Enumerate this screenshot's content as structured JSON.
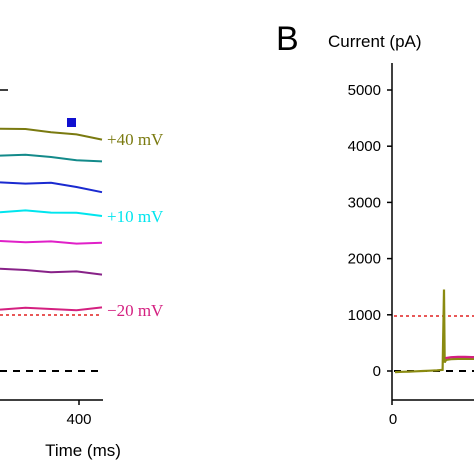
{
  "panel_b_label": "B",
  "chart_data": [
    {
      "type": "line",
      "panel": "A (cropped)",
      "xlabel": "Time (ms)",
      "x_ticks": [
        400
      ],
      "x_visible_range": [
        310,
        430
      ],
      "traces_note": "",
      "series": [
        {
          "name": "+40 mV",
          "color": "#7a7a10",
          "x": [
            310,
            340,
            370,
            400,
            430
          ],
          "y": [
            130,
            129,
            131,
            135,
            139
          ]
        },
        {
          "name": "",
          "color": "#138a8a",
          "x": [
            310,
            340,
            370,
            400,
            430
          ],
          "y": [
            155,
            156,
            157,
            159,
            162
          ]
        },
        {
          "name": "",
          "color": "#1a2ad0",
          "x": [
            310,
            340,
            370,
            400,
            430
          ],
          "y": [
            183,
            183,
            184,
            187,
            191
          ]
        },
        {
          "name": "+10 mV",
          "color": "#00e5ee",
          "x": [
            310,
            340,
            370,
            400,
            430
          ],
          "y": [
            211,
            211,
            212,
            214,
            216
          ]
        },
        {
          "name": "",
          "color": "#e020c8",
          "x": [
            310,
            340,
            370,
            400,
            430
          ],
          "y": [
            241,
            241,
            242,
            243,
            244
          ]
        },
        {
          "name": "",
          "color": "#882288",
          "x": [
            310,
            340,
            370,
            400,
            430
          ],
          "y": [
            270,
            270,
            271,
            272,
            274
          ]
        },
        {
          "name": "-20 mV",
          "color": "#d42080",
          "x": [
            310,
            340,
            370,
            400,
            430
          ],
          "y": [
            309,
            309,
            309,
            309,
            308
          ]
        }
      ],
      "reference_lines": [
        {
          "style": "dashed",
          "color": "#e02020"
        },
        {
          "style": "dashed",
          "color": "#000000"
        }
      ],
      "marker": {
        "shape": "square",
        "color": "#1010d0"
      },
      "trace_labels": [
        "+40 mV",
        "+10 mV",
        "−20 mV"
      ]
    },
    {
      "type": "line",
      "panel": "B",
      "ylabel": "Current (pA)",
      "y_ticks": [
        0,
        1000,
        2000,
        3000,
        4000,
        5000
      ],
      "ylim": [
        -300,
        5500
      ],
      "x_ticks": [
        0
      ],
      "series": [
        {
          "name": "",
          "color": "#8a8a10",
          "x": [
            0,
            5,
            10,
            15,
            20,
            25,
            30,
            34,
            35,
            35.5,
            36,
            37,
            40,
            45,
            50,
            55,
            60
          ],
          "y": [
            -20,
            -15,
            -10,
            -5,
            0,
            5,
            10,
            20,
            1450,
            150,
            180,
            200,
            210,
            215,
            215,
            215,
            215
          ]
        },
        {
          "name": "",
          "color": "#d42080",
          "x": [
            36,
            40,
            45,
            50,
            55,
            60
          ],
          "y": [
            230,
            245,
            250,
            250,
            248,
            248
          ]
        }
      ],
      "reference_lines": [
        {
          "y": 1000,
          "style": "dashed",
          "color": "#e02020"
        },
        {
          "y": 0,
          "style": "dashed",
          "color": "#000000"
        }
      ]
    }
  ]
}
